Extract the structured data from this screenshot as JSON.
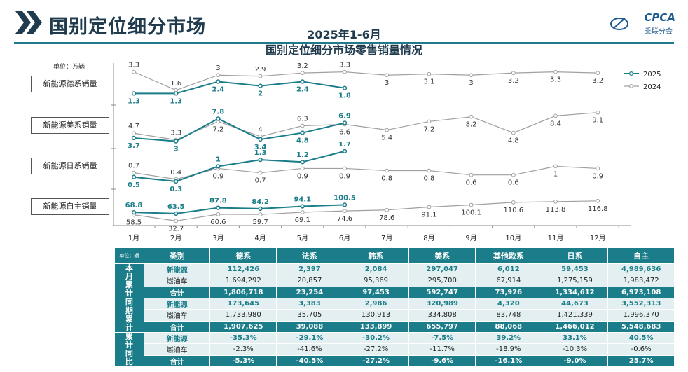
{
  "header": {
    "title": "国别定位细分市场",
    "logo_text": "CPCA",
    "logo_sub": "乘联分会"
  },
  "chart_data": {
    "type": "line",
    "title": "2025年1-6月",
    "subtitle": "国别定位细分市场零售销量情况",
    "unit_label": "单位：万辆",
    "months": [
      "1月",
      "2月",
      "3月",
      "4月",
      "5月",
      "6月",
      "7月",
      "8月",
      "9月",
      "10月",
      "11月",
      "12月"
    ],
    "legend": [
      {
        "name": "2025",
        "color": "#1a7d89"
      },
      {
        "name": "2024",
        "color": "#a0a0a0"
      }
    ],
    "legend_position": "top-right",
    "grid": false,
    "panels": [
      {
        "label": "新能源德系销量",
        "series_2025": [
          1.3,
          1.3,
          2.4,
          2.0,
          2.4,
          1.8
        ],
        "series_2024": [
          3.3,
          1.6,
          3.0,
          2.9,
          3.2,
          3.3,
          3.0,
          3.1,
          3.0,
          3.2,
          3.3,
          3.2
        ]
      },
      {
        "label": "新能源美系销量",
        "series_2025": [
          3.7,
          3.0,
          7.8,
          3.4,
          4.8,
          6.9
        ],
        "series_2024": [
          4.7,
          3.3,
          7.2,
          4.0,
          6.3,
          6.6,
          5.4,
          7.2,
          8.2,
          4.8,
          8.4,
          9.1
        ]
      },
      {
        "label": "新能源日系销量",
        "series_2025": [
          0.5,
          0.3,
          1.0,
          1.3,
          1.2,
          1.7
        ],
        "series_2024": [
          0.7,
          0.4,
          0.9,
          0.7,
          0.9,
          0.9,
          0.8,
          0.8,
          0.6,
          0.6,
          1.0,
          0.9
        ]
      },
      {
        "label": "新能源自主销量",
        "series_2025": [
          68.8,
          63.5,
          87.8,
          84.2,
          94.1,
          100.5
        ],
        "series_2024": [
          58.5,
          32.7,
          60.6,
          59.7,
          69.1,
          74.6,
          78.6,
          91.1,
          100.1,
          110.6,
          113.8,
          116.8
        ]
      }
    ]
  },
  "table": {
    "unit": "单位：辆",
    "headers": [
      "类别",
      "德系",
      "法系",
      "韩系",
      "美系",
      "其他欧系",
      "日系",
      "自主"
    ],
    "groups": [
      {
        "label": "本月累计",
        "rows": [
          {
            "type": "nev",
            "label": "新能源",
            "values": [
              "112,426",
              "2,397",
              "2,084",
              "297,047",
              "6,012",
              "59,453",
              "4,989,636"
            ]
          },
          {
            "type": "ice",
            "label": "燃油车",
            "values": [
              "1,694,292",
              "20,857",
              "95,369",
              "295,700",
              "67,914",
              "1,275,159",
              "1,983,472"
            ]
          },
          {
            "type": "tot",
            "label": "合计",
            "values": [
              "1,806,718",
              "23,254",
              "97,453",
              "592,747",
              "73,926",
              "1,334,612",
              "6,973,108"
            ]
          }
        ]
      },
      {
        "label": "同期累计",
        "rows": [
          {
            "type": "nev",
            "label": "新能源",
            "values": [
              "173,645",
              "3,383",
              "2,986",
              "320,989",
              "4,320",
              "44,673",
              "3,552,313"
            ]
          },
          {
            "type": "ice",
            "label": "燃油车",
            "values": [
              "1,733,980",
              "35,705",
              "130,913",
              "334,808",
              "83,748",
              "1,421,339",
              "1,996,370"
            ]
          },
          {
            "type": "tot",
            "label": "合计",
            "values": [
              "1,907,625",
              "39,088",
              "133,899",
              "655,797",
              "88,068",
              "1,466,012",
              "5,548,683"
            ]
          }
        ]
      },
      {
        "label": "累计同比",
        "rows": [
          {
            "type": "nev",
            "label": "新能源",
            "values": [
              "-35.3%",
              "-29.1%",
              "-30.2%",
              "-7.5%",
              "39.2%",
              "33.1%",
              "40.5%"
            ]
          },
          {
            "type": "ice",
            "label": "燃油车",
            "values": [
              "-2.3%",
              "-41.6%",
              "-27.2%",
              "-11.7%",
              "-18.9%",
              "-10.3%",
              "-0.6%"
            ]
          },
          {
            "type": "tot",
            "label": "合计",
            "values": [
              "-5.3%",
              "-40.5%",
              "-27.2%",
              "-9.6%",
              "-16.1%",
              "-9.0%",
              "25.7%"
            ]
          }
        ]
      }
    ]
  }
}
